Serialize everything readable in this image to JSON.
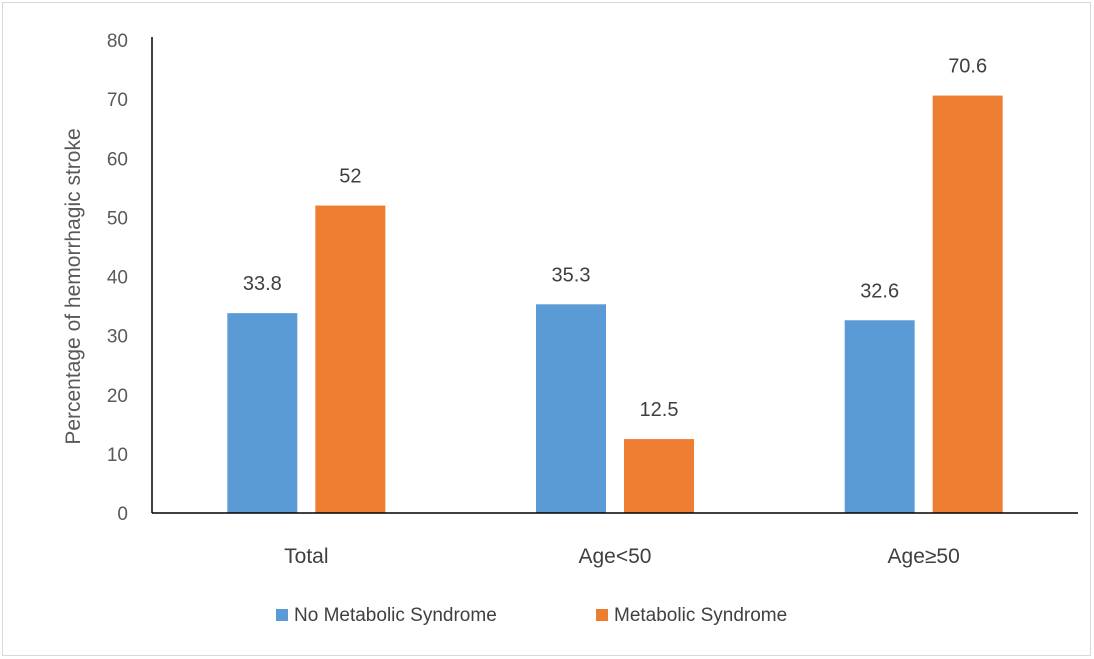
{
  "chart_data": {
    "type": "bar",
    "title": "",
    "xlabel": "",
    "ylabel": "Percentage of hemorrhagic stroke",
    "categories": [
      "Total",
      "Age<50",
      "Age≥50"
    ],
    "series": [
      {
        "name": "No Metabolic Syndrome",
        "values": [
          33.8,
          35.3,
          32.6
        ],
        "color": "#5b9bd5"
      },
      {
        "name": "Metabolic Syndrome",
        "values": [
          52,
          12.5,
          70.6
        ],
        "color": "#ed7d31"
      }
    ],
    "ylim": [
      0,
      80
    ],
    "yticks": [
      0,
      10,
      20,
      30,
      40,
      50,
      60,
      70,
      80
    ],
    "data_labels": true,
    "grid": false,
    "legend": "bottom-center"
  }
}
